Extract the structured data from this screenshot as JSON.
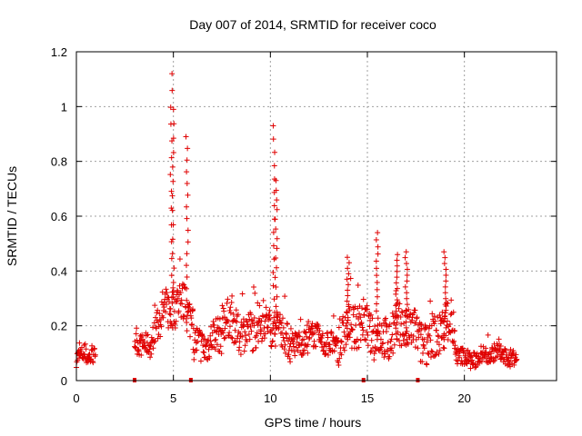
{
  "chart_data": {
    "type": "scatter",
    "title": "Day 007 of 2014, SRMTID for receiver coco",
    "xlabel": "GPS time / hours",
    "ylabel": "SRMTID / TECUs",
    "xlim": [
      0,
      24.75
    ],
    "ylim": [
      0,
      1.2
    ],
    "xticks": [
      0,
      5,
      10,
      15,
      20
    ],
    "xtick_labels": [
      "0",
      "5",
      "10",
      "15",
      "20"
    ],
    "yticks": [
      0,
      0.2,
      0.4,
      0.6,
      0.8,
      1.0,
      1.2
    ],
    "ytick_labels": [
      "0",
      "0.2",
      "0.4",
      "0.6",
      "0.8",
      "1",
      "1.2"
    ],
    "grid": true,
    "marker": "plus",
    "series_color": "#e00000",
    "segments": [
      {
        "start": 0.0,
        "end": 1.0,
        "base": 0.08,
        "amp": 0.04
      },
      {
        "start": 3.0,
        "end": 4.0,
        "base": 0.13,
        "amp": 0.05
      },
      {
        "start": 4.0,
        "end": 6.0,
        "base": 0.25,
        "amp": 0.1
      },
      {
        "start": 6.0,
        "end": 7.5,
        "base": 0.15,
        "amp": 0.08
      },
      {
        "start": 7.5,
        "end": 9.5,
        "base": 0.2,
        "amp": 0.09
      },
      {
        "start": 9.5,
        "end": 11.0,
        "base": 0.18,
        "amp": 0.08
      },
      {
        "start": 11.0,
        "end": 13.5,
        "base": 0.14,
        "amp": 0.06
      },
      {
        "start": 13.5,
        "end": 16.0,
        "base": 0.18,
        "amp": 0.1
      },
      {
        "start": 16.0,
        "end": 19.5,
        "base": 0.17,
        "amp": 0.1
      },
      {
        "start": 19.5,
        "end": 22.7,
        "base": 0.09,
        "amp": 0.04
      }
    ],
    "spikes": [
      {
        "x": 4.9,
        "ymin": 0.2,
        "ymax": 1.12
      },
      {
        "x": 5.0,
        "ymin": 0.2,
        "ymax": 0.99
      },
      {
        "x": 5.7,
        "ymin": 0.25,
        "ymax": 0.89
      },
      {
        "x": 10.2,
        "ymin": 0.2,
        "ymax": 0.93
      },
      {
        "x": 10.3,
        "ymin": 0.2,
        "ymax": 0.73
      },
      {
        "x": 14.0,
        "ymin": 0.15,
        "ymax": 0.45
      },
      {
        "x": 15.5,
        "ymin": 0.15,
        "ymax": 0.54
      },
      {
        "x": 16.5,
        "ymin": 0.15,
        "ymax": 0.46
      },
      {
        "x": 17.0,
        "ymin": 0.15,
        "ymax": 0.47
      },
      {
        "x": 19.0,
        "ymin": 0.15,
        "ymax": 0.47
      }
    ],
    "baseline_markers": [
      3.0,
      5.9,
      14.8,
      17.6
    ]
  }
}
